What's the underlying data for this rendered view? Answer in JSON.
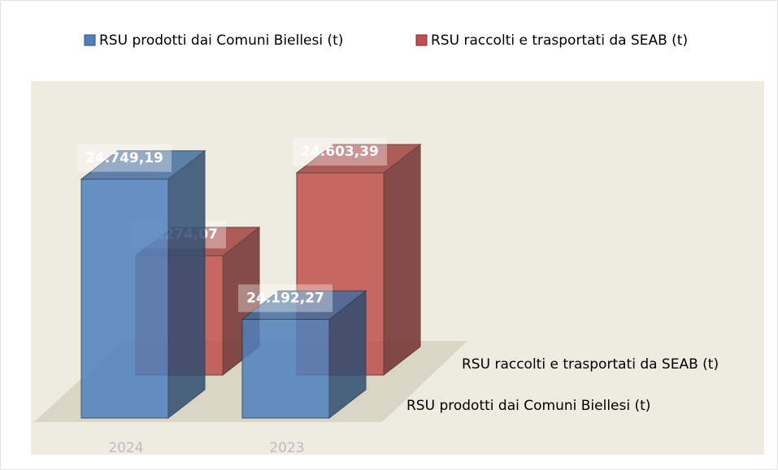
{
  "chart_data": {
    "type": "bar3d",
    "categories": [
      "2024",
      "2023"
    ],
    "series": [
      {
        "name": "RSU prodotti dai Comuni Biellesi (t)",
        "color": "#4f81bd",
        "values": [
          24749.19,
          24192.27
        ],
        "value_labels": [
          "24.749,19",
          "24.192,27"
        ]
      },
      {
        "name": "RSU raccolti e trasportati da SEAB (t)",
        "color": "#c0504d",
        "values": [
          24274.07,
          24603.39
        ],
        "value_labels": [
          "24.274,07",
          "24.603,39"
        ]
      }
    ],
    "ylim": [
      23800,
      24800
    ],
    "legend": "top"
  }
}
